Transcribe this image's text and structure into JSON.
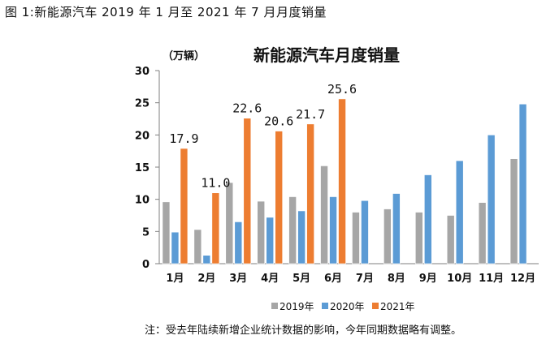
{
  "caption": "图 1:新能源汽车 2019 年 1 月至 2021 年 7 月月度销量",
  "footnote": "注：受去年陆续新增企业统计数据的影响，今年同期数据略有调整。",
  "colors": {
    "2019年": "#a6a6a6",
    "2020年": "#5b9bd5",
    "2021年": "#ed7d31"
  },
  "chart_data": {
    "type": "bar",
    "title": "新能源汽车月度销量",
    "unit_label": "（万辆）",
    "categories": [
      "1月",
      "2月",
      "3月",
      "4月",
      "5月",
      "6月",
      "7月",
      "8月",
      "9月",
      "10月",
      "11月",
      "12月"
    ],
    "ylim": [
      0,
      30
    ],
    "yticks": [
      0,
      5,
      10,
      15,
      20,
      25,
      30
    ],
    "grid": false,
    "legend": "bottom",
    "series": [
      {
        "name": "2019年",
        "values": [
          9.6,
          5.3,
          12.6,
          9.7,
          10.4,
          15.2,
          8.0,
          8.5,
          8.0,
          7.5,
          9.5,
          16.3
        ]
      },
      {
        "name": "2020年",
        "values": [
          4.9,
          1.3,
          6.5,
          7.2,
          8.2,
          10.4,
          9.8,
          10.9,
          13.8,
          16.0,
          20.0,
          24.8
        ]
      },
      {
        "name": "2021年",
        "values": [
          17.9,
          11.0,
          22.6,
          20.6,
          21.7,
          25.6,
          null,
          null,
          null,
          null,
          null,
          null
        ]
      }
    ],
    "data_labels": [
      {
        "series": "2021年",
        "index": 0,
        "text": "17.9"
      },
      {
        "series": "2021年",
        "index": 1,
        "text": "11.0"
      },
      {
        "series": "2021年",
        "index": 2,
        "text": "22.6"
      },
      {
        "series": "2021年",
        "index": 3,
        "text": "20.6"
      },
      {
        "series": "2021年",
        "index": 4,
        "text": "21.7"
      },
      {
        "series": "2021年",
        "index": 5,
        "text": "25.6"
      }
    ]
  }
}
